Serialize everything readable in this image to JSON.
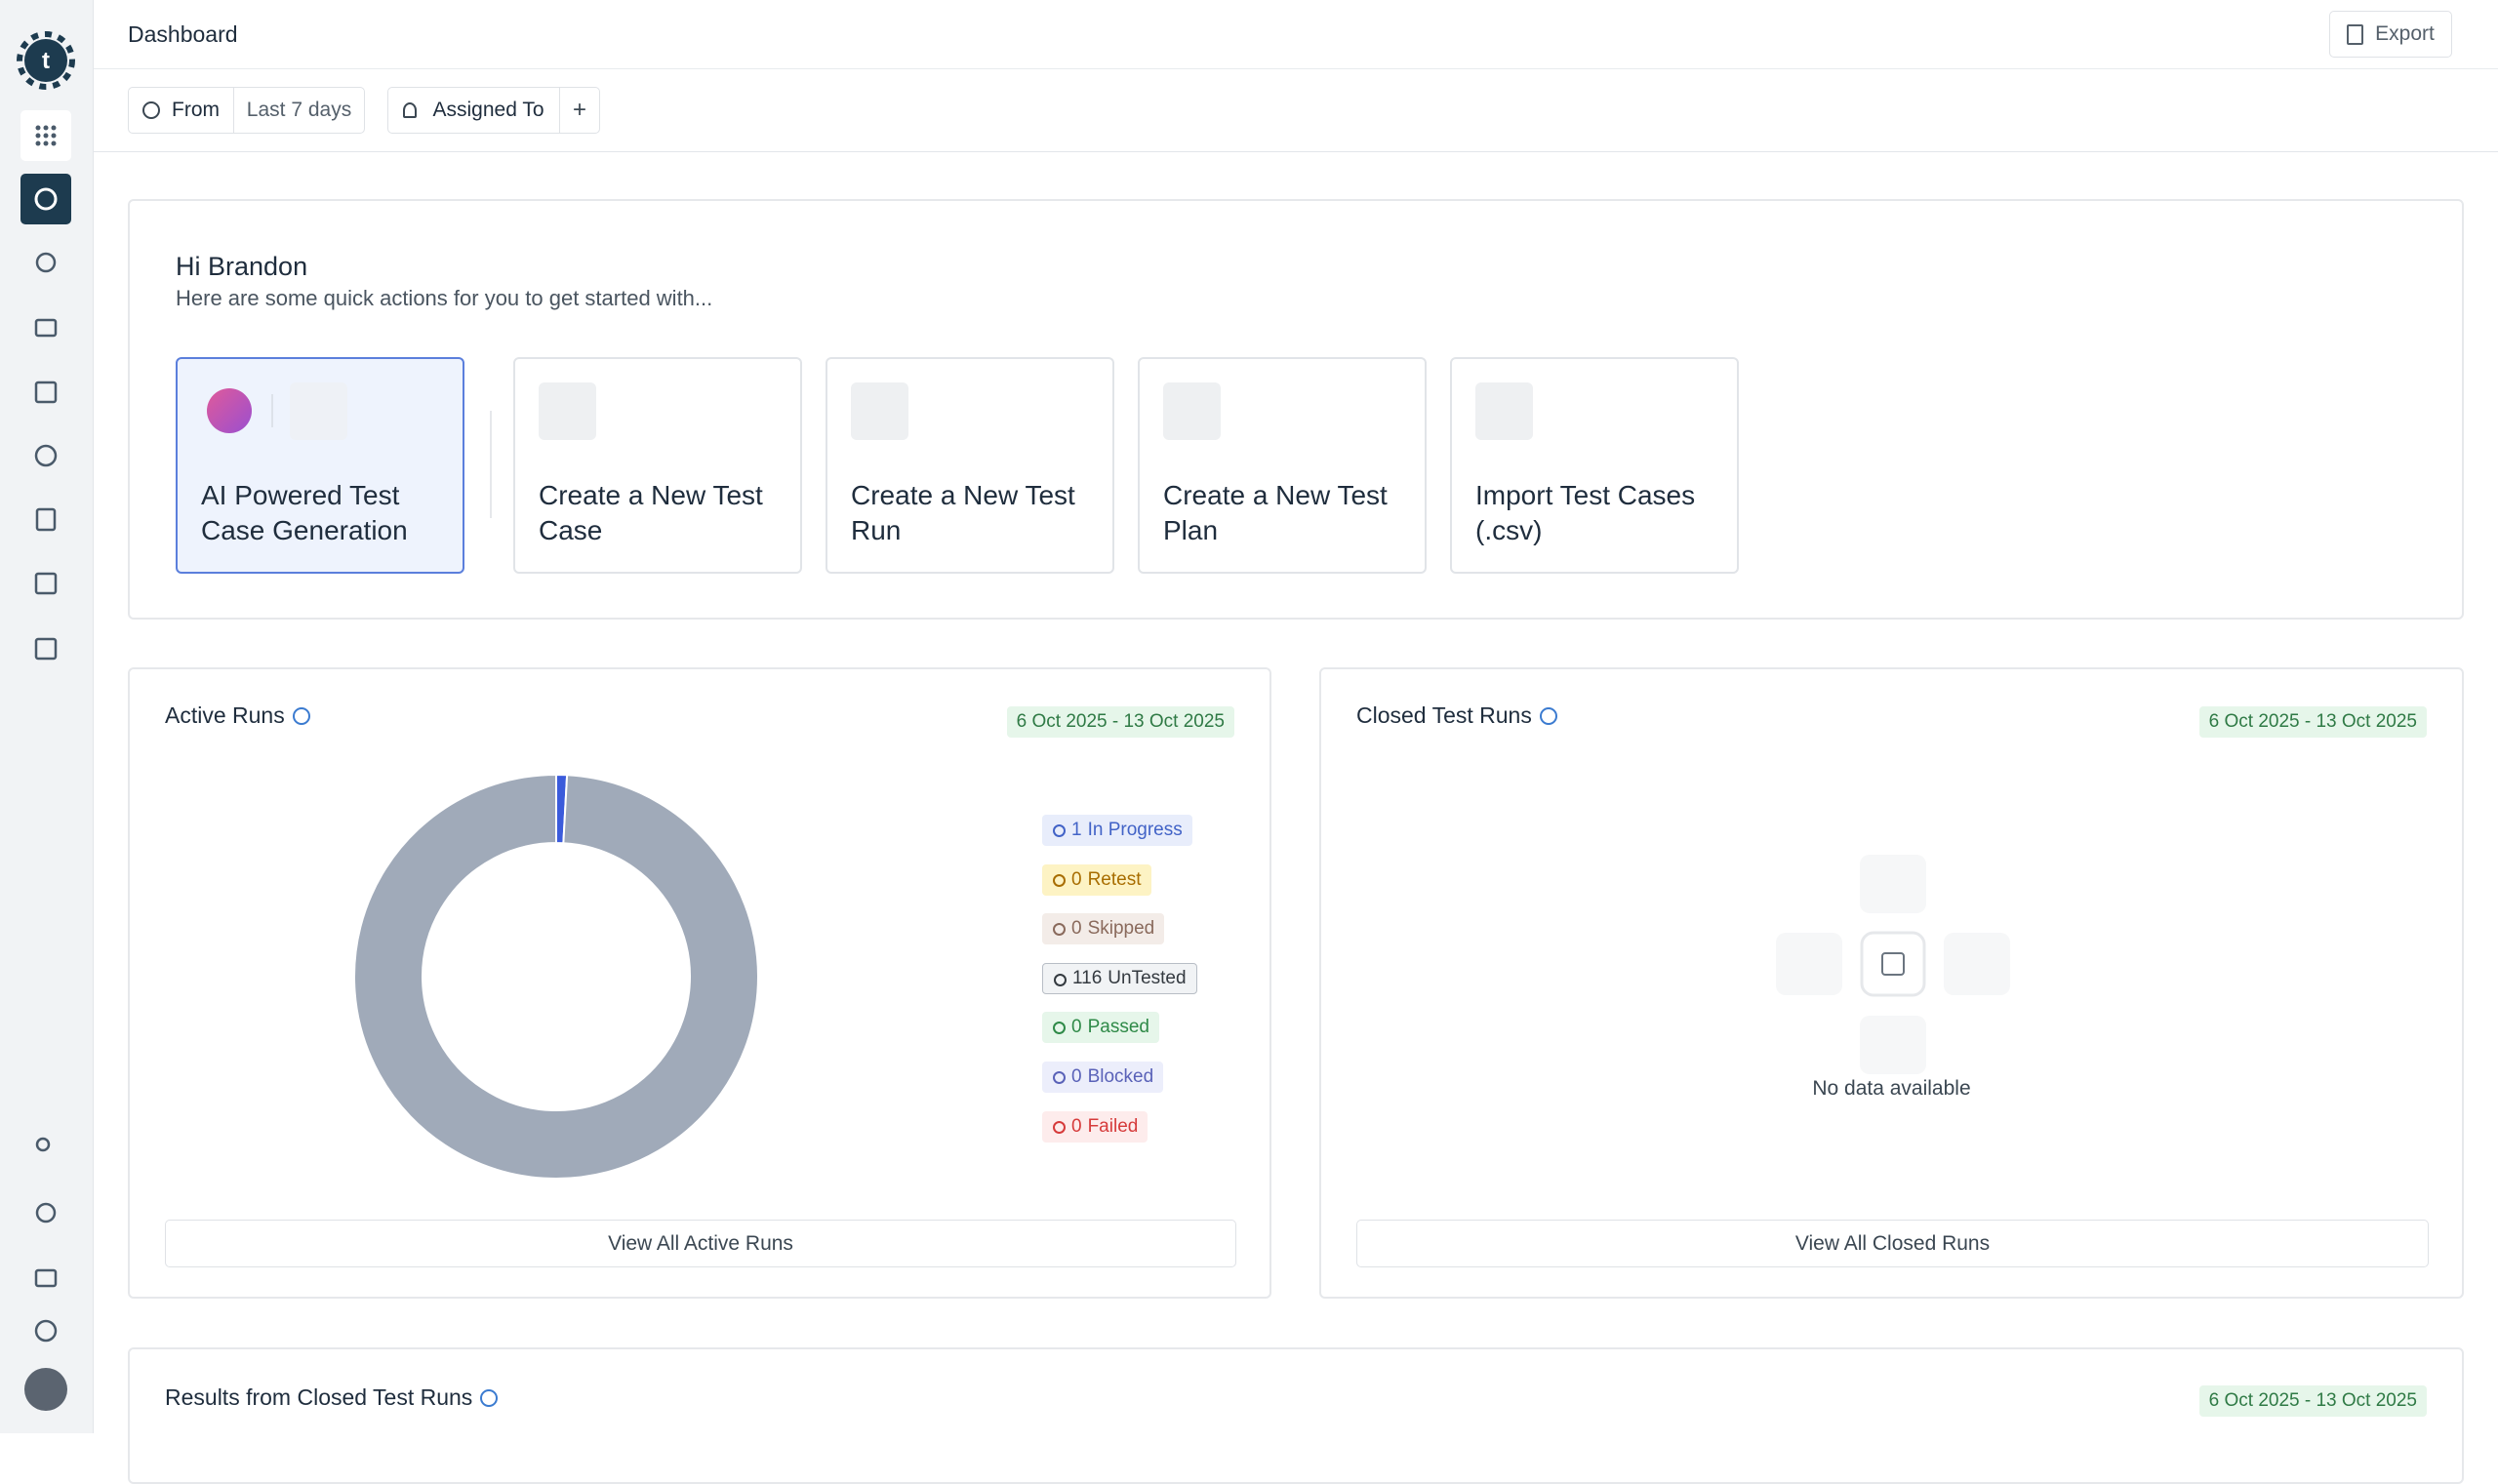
{
  "header": {
    "title": "Dashboard",
    "export": "Export"
  },
  "filters": {
    "from": "From",
    "range": "Last 7 days",
    "assigned": "Assigned To",
    "add": "+"
  },
  "welcome": {
    "greeting": "Hi Brandon",
    "subtitle": "Here are some quick actions for you to get started with...",
    "actions": [
      "AI Powered Test Case Generation",
      "Create a New Test Case",
      "Create a New Test Run",
      "Create a New Test Plan",
      "Import Test Cases (.csv)"
    ]
  },
  "chart_data": {
    "type": "donut",
    "title": "Active Runs",
    "date_range": "6 Oct 2025 - 13 Oct 2025",
    "categories": [
      "In Progress",
      "Retest",
      "Skipped",
      "UnTested",
      "Passed",
      "Blocked",
      "Failed"
    ],
    "values": [
      1,
      0,
      0,
      116,
      0,
      0,
      0
    ],
    "colors": [
      "#3b5bdb",
      "#f0b400",
      "#a07a68",
      "#a0aab9",
      "#40a25a",
      "#6670c8",
      "#e04444"
    ],
    "button": "View All Active Runs"
  },
  "closed_runs": {
    "title": "Closed Test Runs",
    "date_range": "6 Oct 2025 - 13 Oct 2025",
    "empty": "No data available",
    "button": "View All Closed Runs"
  },
  "results": {
    "title": "Results from Closed Test Runs",
    "date_range": "6 Oct 2025 - 13 Oct 2025"
  }
}
